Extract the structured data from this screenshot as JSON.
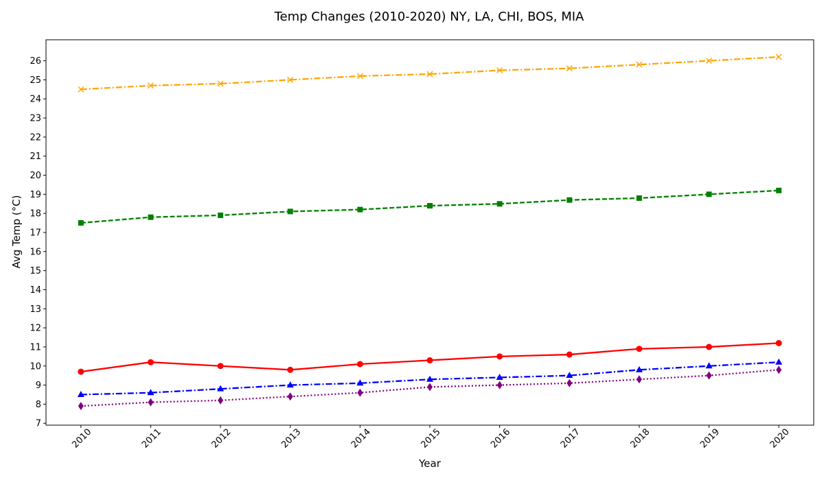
{
  "chart_data": {
    "type": "line",
    "title": "Temp Changes (2010-2020) NY, LA, CHI, BOS, MIA",
    "xlabel": "Year",
    "ylabel": "Avg Temp (°C)",
    "x": [
      2010,
      2011,
      2012,
      2013,
      2014,
      2015,
      2016,
      2017,
      2018,
      2019,
      2020
    ],
    "xlim": [
      2009.5,
      2020.5
    ],
    "ylim": [
      6.9,
      27.1
    ],
    "yticks": [
      7,
      8,
      9,
      10,
      11,
      12,
      13,
      14,
      15,
      16,
      17,
      18,
      19,
      20,
      21,
      22,
      23,
      24,
      25,
      26
    ],
    "grid": false,
    "legend": false,
    "series": [
      {
        "values": [
          9.7,
          10.2,
          10.0,
          9.8,
          10.1,
          10.3,
          10.5,
          10.6,
          10.9,
          11.0,
          11.2
        ],
        "color": "#ff0000",
        "line_style": "solid",
        "marker": "circle"
      },
      {
        "values": [
          17.5,
          17.8,
          17.9,
          18.1,
          18.2,
          18.4,
          18.5,
          18.7,
          18.8,
          19.0,
          19.2
        ],
        "color": "#008000",
        "line_style": "dashed",
        "marker": "square"
      },
      {
        "values": [
          8.5,
          8.6,
          8.8,
          9.0,
          9.1,
          9.3,
          9.4,
          9.5,
          9.8,
          10.0,
          10.2
        ],
        "color": "#0000ff",
        "line_style": "dashdot",
        "marker": "triangle"
      },
      {
        "values": [
          7.9,
          8.1,
          8.2,
          8.4,
          8.6,
          8.9,
          9.0,
          9.1,
          9.3,
          9.5,
          9.8
        ],
        "color": "#800080",
        "line_style": "dotted",
        "marker": "diamond"
      },
      {
        "values": [
          24.5,
          24.7,
          24.8,
          25.0,
          25.2,
          25.3,
          25.5,
          25.6,
          25.8,
          26.0,
          26.2
        ],
        "color": "#ffa500",
        "line_style": "dashdot",
        "marker": "x"
      }
    ]
  }
}
